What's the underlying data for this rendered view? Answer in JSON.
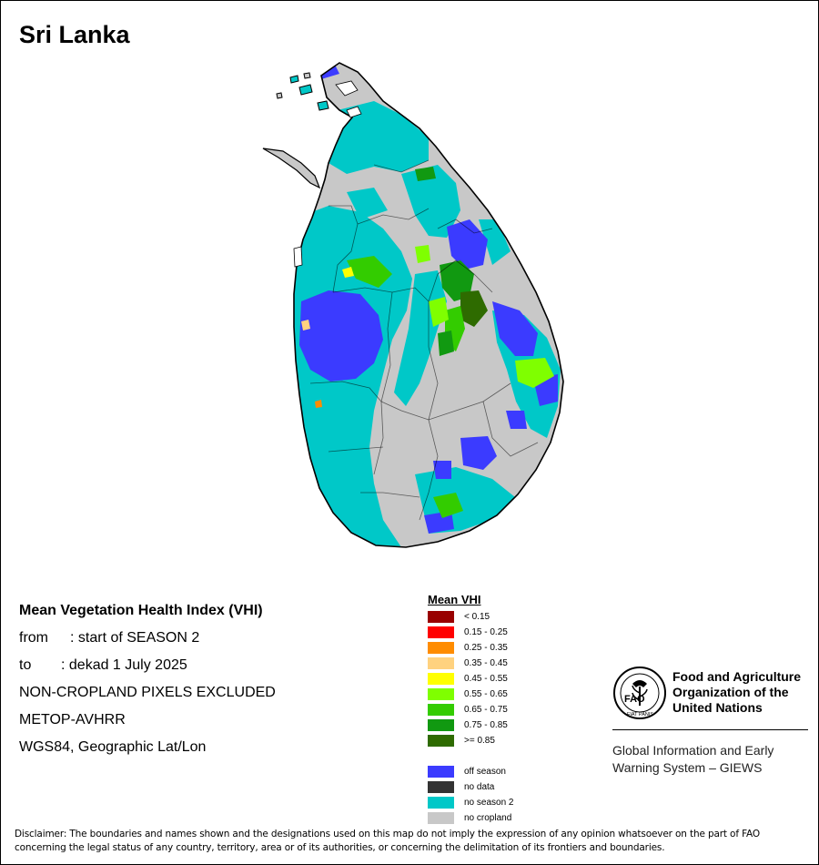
{
  "title": "Sri Lanka",
  "info": {
    "heading": "Mean Vegetation Health Index (VHI)",
    "from_label": "from",
    "from_value": ": start of SEASON 2",
    "to_label": "to",
    "to_value": ": dekad 1 July 2025",
    "line3": "NON-CROPLAND PIXELS EXCLUDED",
    "line4": "METOP-AVHRR",
    "line5": "WGS84, Geographic Lat/Lon"
  },
  "legend": {
    "title": "Mean VHI",
    "classes": [
      {
        "label": "< 0.15",
        "color": "#990000"
      },
      {
        "label": "0.15 - 0.25",
        "color": "#ff0000"
      },
      {
        "label": "0.25 - 0.35",
        "color": "#ff8c00"
      },
      {
        "label": "0.35 - 0.45",
        "color": "#ffd27f"
      },
      {
        "label": "0.45 - 0.55",
        "color": "#ffff00"
      },
      {
        "label": "0.55 - 0.65",
        "color": "#7fff00"
      },
      {
        "label": "0.65 - 0.75",
        "color": "#33cc00"
      },
      {
        "label": "0.75 - 0.85",
        "color": "#119911"
      },
      {
        "label": ">= 0.85",
        "color": "#2e6b00"
      }
    ],
    "special": [
      {
        "label": "off season",
        "color": "#3b3bff"
      },
      {
        "label": "no data",
        "color": "#333333"
      },
      {
        "label": "no season 2",
        "color": "#00c8c8"
      },
      {
        "label": "no cropland",
        "color": "#c8c8c8"
      }
    ]
  },
  "logo": {
    "org_line1": "Food and Agriculture",
    "org_line2": "Organization of the",
    "org_line3": "United Nations",
    "giews_line1": "Global Information and Early",
    "giews_line2": "Warning System – GIEWS",
    "seal_text": "FAO",
    "seal_motto": "FIAT PANIS"
  },
  "disclaimer_line1": "Disclaimer: The boundaries and names shown and the designations used on this map do not imply the expression of any opinion whatsoever on the part of FAO",
  "disclaimer_line2": "concerning the legal status of any country, territory, area or of its authorities, or concerning the delimitation of its frontiers and boundaries."
}
